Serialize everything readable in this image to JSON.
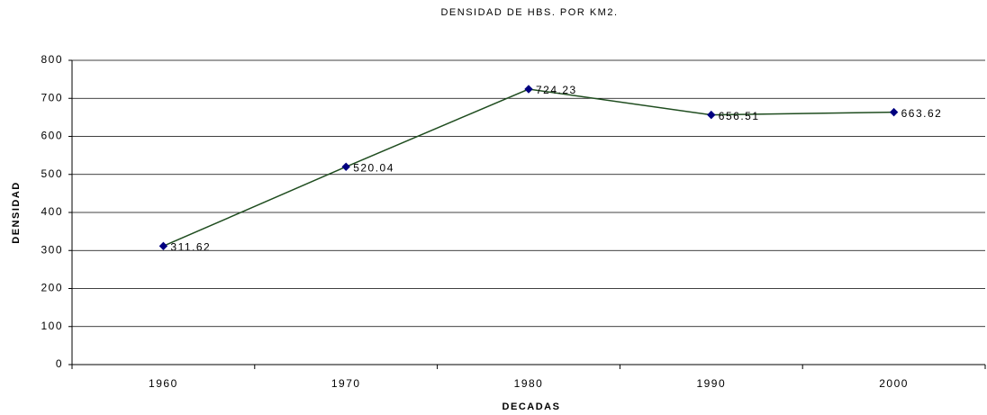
{
  "chart_data": {
    "type": "line",
    "title": "DENSIDAD DE HBS. POR KM2.",
    "x_label": "DECADAS",
    "y_label": "DENSIDAD",
    "categories": [
      "1960",
      "1970",
      "1980",
      "1990",
      "2000"
    ],
    "series": [
      {
        "name": "DENSIDAD",
        "color": "#1f4d1f",
        "marker_color": "#000080",
        "values": [
          311.62,
          520.04,
          724.23,
          656.51,
          663.62
        ]
      }
    ],
    "ylim": [
      0,
      800
    ],
    "yticks": [
      0,
      100,
      200,
      300,
      400,
      500,
      600,
      700,
      800
    ],
    "grid": true
  }
}
